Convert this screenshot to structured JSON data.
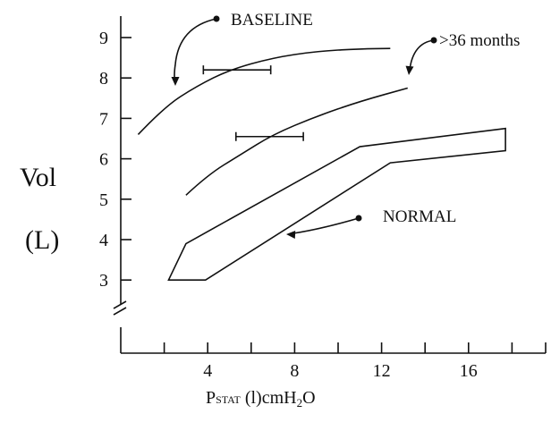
{
  "chart_data": {
    "type": "line",
    "ylabel": [
      "Vol",
      "(L)"
    ],
    "xlabel": {
      "main": "P",
      "sub": "STAT",
      "rest": " (l)cmH",
      "sub2": "2",
      "end": "O"
    },
    "x_ticks": [
      4,
      8,
      12,
      16
    ],
    "y_ticks": [
      3,
      4,
      5,
      6,
      7,
      8,
      9
    ],
    "xlim": [
      0,
      19
    ],
    "ylim": [
      3,
      9.5
    ],
    "y_axis_break": true,
    "series": [
      {
        "name": "BASELINE",
        "x": [
          0.8,
          2,
          3.5,
          5,
          7,
          9,
          11,
          12.4
        ],
        "y": [
          6.6,
          7.28,
          7.8,
          8.2,
          8.5,
          8.66,
          8.72,
          8.73
        ]
      },
      {
        "name": ">36 months",
        "x": [
          3,
          4,
          5.5,
          7,
          9,
          11,
          13.2
        ],
        "y": [
          5.1,
          5.6,
          6.1,
          6.6,
          7.05,
          7.42,
          7.75
        ]
      }
    ],
    "normal_band": {
      "name": "NORMAL",
      "x": [
        3,
        11,
        17.7,
        17.7,
        12.4,
        3.9,
        2.2
      ],
      "y": [
        3.9,
        6.3,
        6.75,
        6.2,
        5.9,
        3.0,
        3.0
      ]
    },
    "error_bars": [
      {
        "x_low": 3.8,
        "x_high": 6.9,
        "y": 8.2
      },
      {
        "x_low": 5.3,
        "x_high": 8.4,
        "y": 6.55
      }
    ],
    "annotations": [
      {
        "text": "BASELINE",
        "series": "BASELINE"
      },
      {
        "text": ">36 months",
        "series": ">36 months"
      },
      {
        "text": "NORMAL",
        "series": "NORMAL"
      }
    ]
  }
}
